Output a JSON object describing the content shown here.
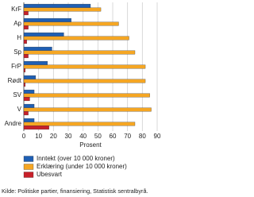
{
  "chart_data": {
    "type": "hbar",
    "categories": [
      "KrF",
      "Ap",
      "H",
      "Sp",
      "FrP",
      "Rødt",
      "SV",
      "V",
      "Andre"
    ],
    "series": [
      {
        "name": "Inntekt (over 10 000 kroner)",
        "color": "#1f5fb4",
        "values": [
          45,
          32,
          27,
          19,
          16,
          8,
          7,
          7,
          7
        ]
      },
      {
        "name": "Erklæring (under 10 000 kroner)",
        "color": "#f5a623",
        "values": [
          52,
          64,
          71,
          75,
          82,
          82,
          85,
          86,
          75
        ]
      },
      {
        "name": "Ubesvart",
        "color": "#c8202a",
        "values": [
          3,
          3,
          2,
          3,
          1,
          1,
          4,
          3,
          17
        ]
      }
    ],
    "xlim": [
      0,
      90
    ],
    "xticks": [
      0,
      10,
      20,
      30,
      40,
      50,
      60,
      70,
      80,
      90
    ],
    "xlabel": "Prosent",
    "grid": true,
    "source": "Kilde: Politiske partier, finansiering, Statistisk sentralbyrå."
  }
}
